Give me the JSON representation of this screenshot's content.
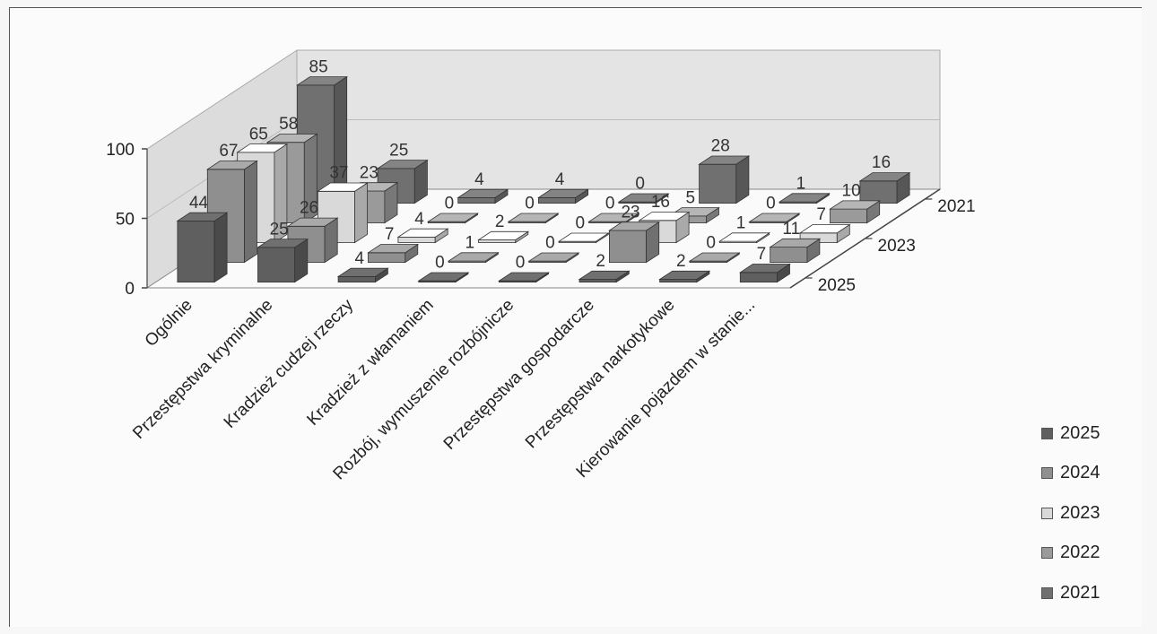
{
  "chart_data": {
    "type": "bar3d",
    "title": "",
    "categories": [
      "Ogólnie",
      "Przestępstwa kryminalne",
      "Kradzież cudzej rzeczy",
      "Kradzież z włamaniem",
      "Rozbój, wymuszenie rozbójnicze",
      "Przestępstwa gospodarcze",
      "Przestępstwa narkotykowe",
      "Kierowanie pojazdem w stanie..."
    ],
    "series_axis_labels": [
      "2021",
      "2023",
      "2025"
    ],
    "ylim": [
      0,
      100
    ],
    "yticks": [
      "0",
      "50",
      "100"
    ],
    "grid": true,
    "legend_position": "right",
    "series": [
      {
        "name": "2025",
        "color": "#5f5f5f",
        "values": [
          44,
          25,
          4,
          0,
          0,
          2,
          2,
          7
        ]
      },
      {
        "name": "2024",
        "color": "#8f8f8f",
        "values": [
          67,
          26,
          7,
          1,
          0,
          23,
          0,
          11
        ]
      },
      {
        "name": "2023",
        "color": "#d9d9d9",
        "values": [
          65,
          37,
          4,
          2,
          0,
          16,
          1,
          7
        ]
      },
      {
        "name": "2022",
        "color": "#9a9a9a",
        "values": [
          58,
          23,
          0,
          0,
          0,
          5,
          0,
          10
        ]
      },
      {
        "name": "2021",
        "color": "#707070",
        "values": [
          85,
          25,
          4,
          4,
          0,
          28,
          1,
          16
        ]
      }
    ]
  }
}
